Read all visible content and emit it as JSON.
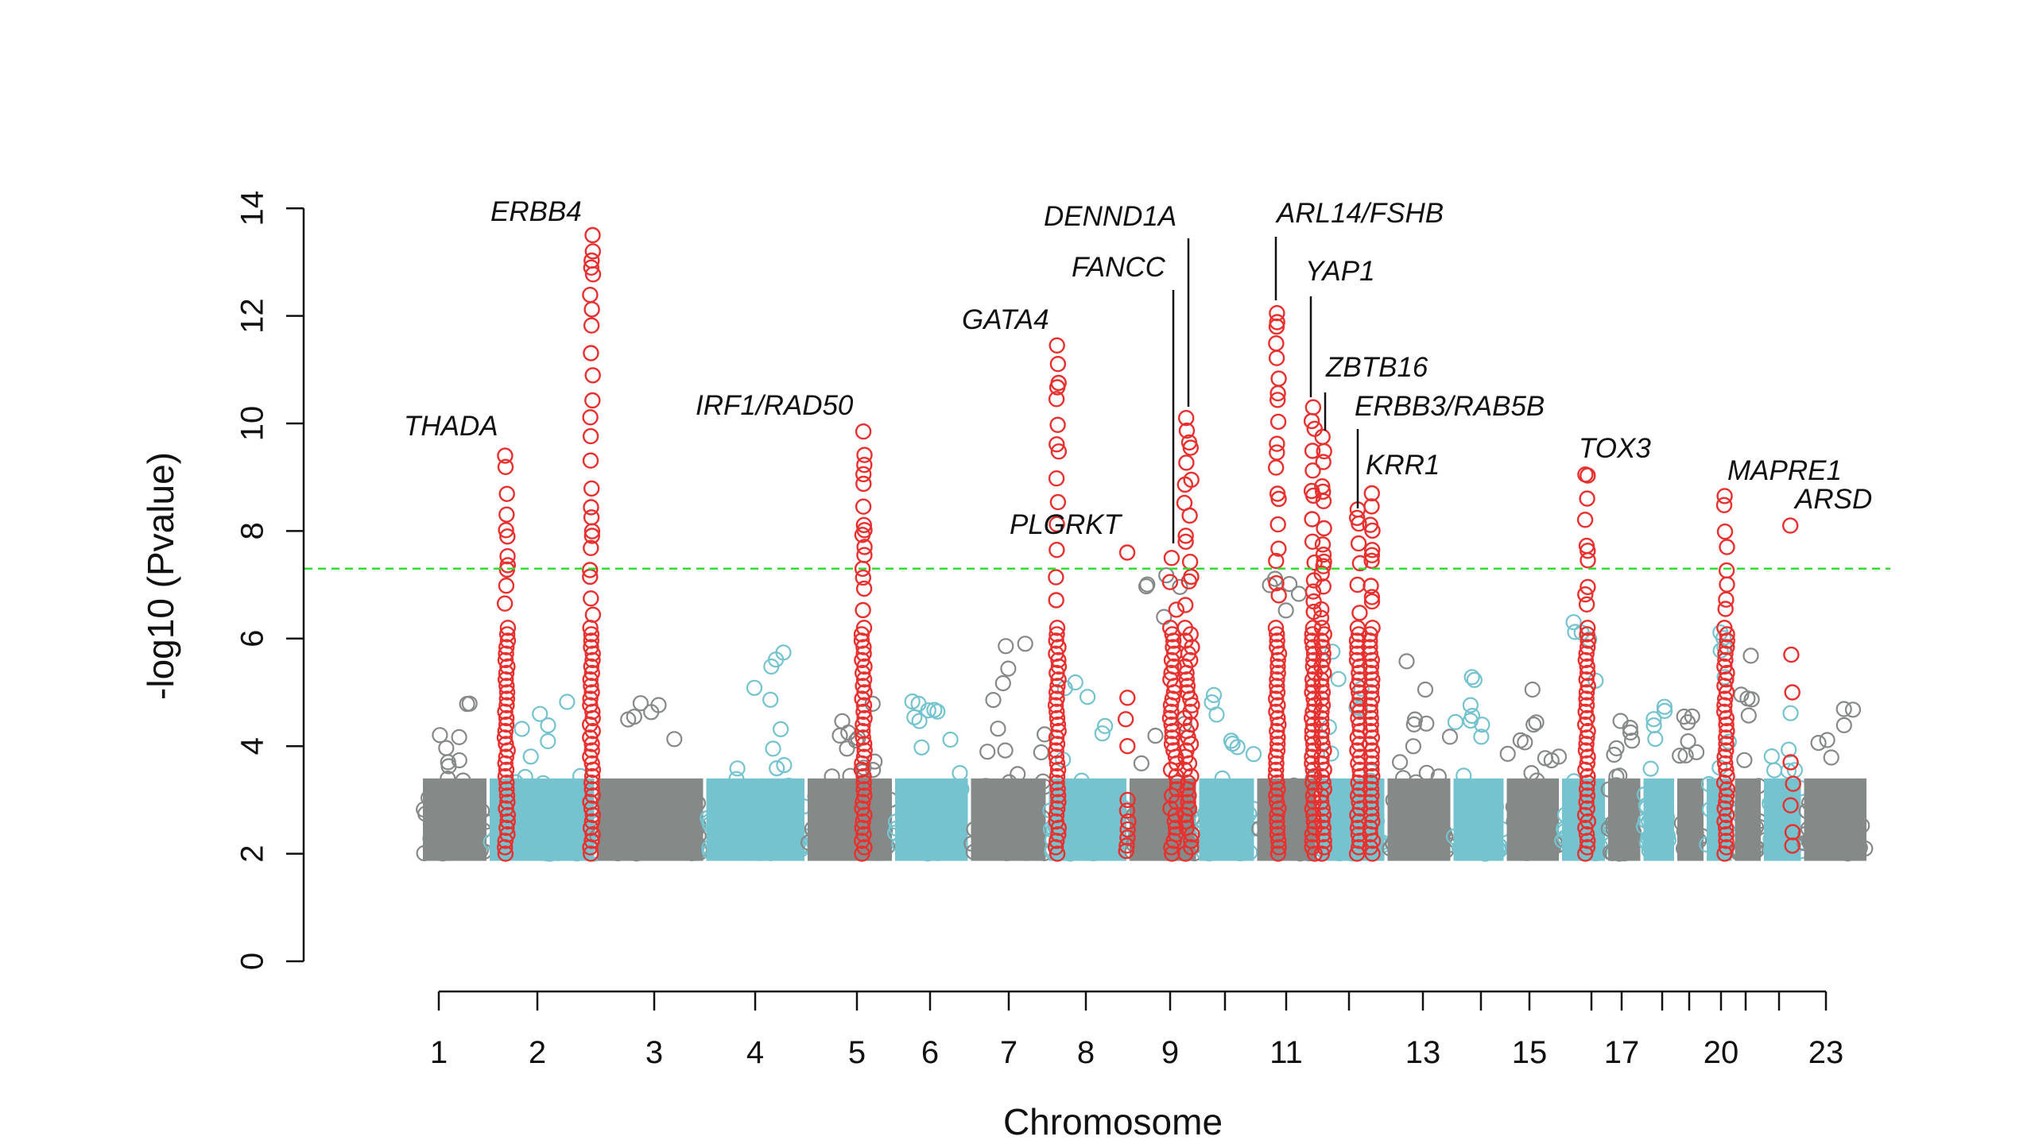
{
  "chart_data": {
    "type": "scatter",
    "subtype": "manhattan",
    "title": "",
    "xlabel": "Chromosome",
    "ylabel": "-log10 (Pvalue)",
    "ylim": [
      0,
      14
    ],
    "yticks": [
      0,
      2,
      4,
      6,
      8,
      10,
      12,
      14
    ],
    "xticks_shown": [
      "1",
      "2",
      "3",
      "4",
      "5",
      "6",
      "7",
      "8",
      "9",
      "11",
      "13",
      "15",
      "17",
      "20",
      "23"
    ],
    "chromosomes": [
      "1",
      "2",
      "3",
      "4",
      "5",
      "6",
      "7",
      "8",
      "9",
      "10",
      "11",
      "12",
      "13",
      "14",
      "15",
      "16",
      "17",
      "18",
      "19",
      "20",
      "21",
      "22",
      "23"
    ],
    "threshold": {
      "value": 7.3,
      "style": "dashed",
      "color": "#33dd33"
    },
    "colors": {
      "grey": "#858a89",
      "teal": "#74c3ce",
      "hit": "#e8302f"
    },
    "background_peaks": [
      4.9,
      5.0,
      5.0,
      5.8,
      5.0,
      5.6,
      6.0,
      5.2,
      7.5,
      5.0,
      7.3,
      5.9,
      5.6,
      5.4,
      5.2,
      6.4,
      4.6,
      4.9,
      4.9,
      6.3,
      5.7,
      4.7,
      4.8
    ],
    "hits": [
      {
        "gene": "THADA",
        "chr": 2,
        "top": 9.4
      },
      {
        "gene": "ERBB4",
        "chr": 2,
        "top": 13.5
      },
      {
        "gene": "IRF1/RAD50",
        "chr": 5,
        "top": 9.85
      },
      {
        "gene": "GATA4",
        "chr": 8,
        "top": 11.45
      },
      {
        "gene": "PLGRKT",
        "chr": 9,
        "top": 7.6
      },
      {
        "gene": "FANCC",
        "chr": 9,
        "top": 7.5
      },
      {
        "gene": "DENND1A",
        "chr": 9,
        "top": 10.1
      },
      {
        "gene": "ARL14/FSHB",
        "chr": 11,
        "top": 12.05
      },
      {
        "gene": "YAP1",
        "chr": 11,
        "top": 10.3
      },
      {
        "gene": "ZBTB16",
        "chr": 11,
        "top": 9.75
      },
      {
        "gene": "ERBB3/RAB5B",
        "chr": 12,
        "top": 8.4
      },
      {
        "gene": "KRR1",
        "chr": 12,
        "top": 8.7
      },
      {
        "gene": "TOX3",
        "chr": 16,
        "top": 9.05
      },
      {
        "gene": "MAPRE1",
        "chr": 20,
        "top": 8.65
      },
      {
        "gene": "ARSD",
        "chr": 23,
        "top": 8.1
      }
    ]
  }
}
